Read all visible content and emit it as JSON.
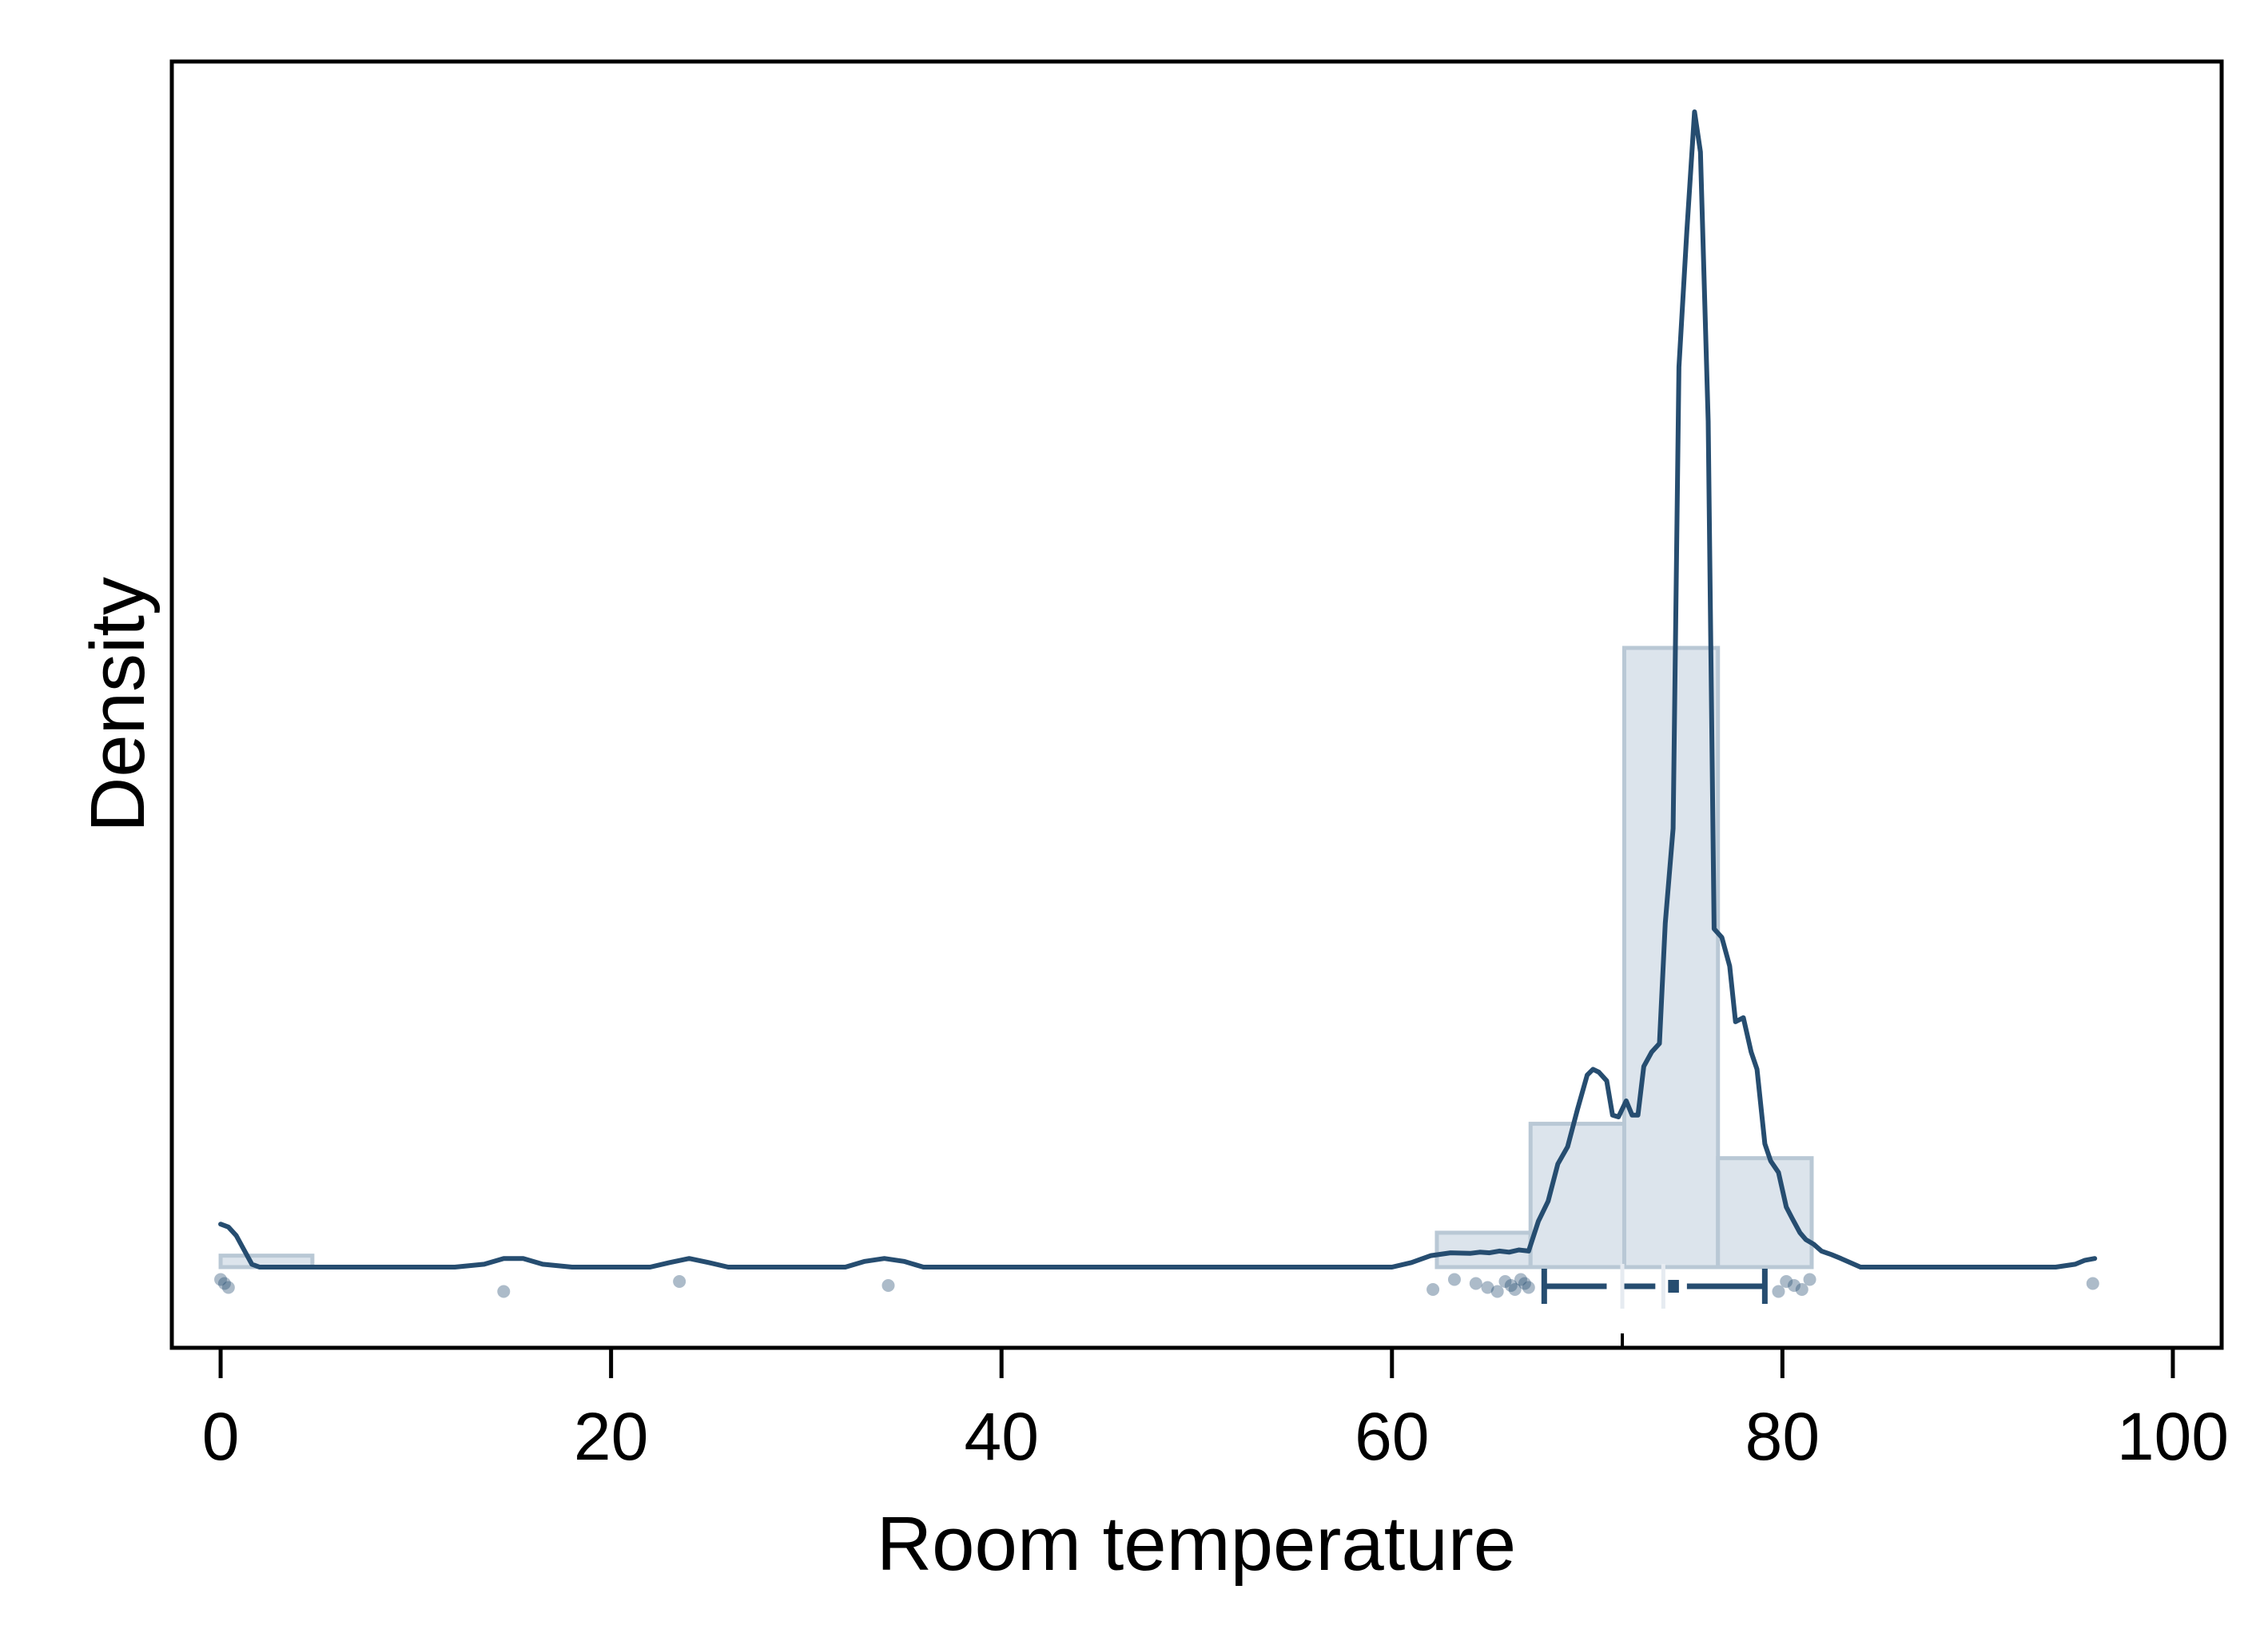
{
  "chart_data": {
    "type": "histogram-density",
    "xlabel": "Room temperature",
    "ylabel": "Density",
    "xlim": [
      -2.5,
      102.5
    ],
    "x_ticks": [
      0,
      20,
      40,
      60,
      80,
      100
    ],
    "y_ticks": [],
    "grid": false,
    "legend": "none",
    "colors": {
      "line": "#264d70",
      "bar_fill": "#dce4ec",
      "bar_stroke": "#b9c8d5",
      "points": "#264d70",
      "box": "#264d70"
    },
    "histogram": {
      "bin_edges": [
        0,
        4.7,
        62.3,
        67.1,
        71.9,
        76.7,
        81.5
      ],
      "density": [
        0.002,
        0.0,
        0.006,
        0.025,
        0.108,
        0.019
      ]
    },
    "density_curve": {
      "x": [
        0,
        0.4,
        0.8,
        1.2,
        1.6,
        2,
        4,
        8,
        12,
        13.5,
        14.5,
        15.5,
        16.5,
        18,
        22,
        23,
        24,
        25,
        26,
        28,
        32,
        33,
        34,
        35,
        36,
        40,
        50,
        60,
        61,
        62,
        63,
        64,
        64.5,
        65,
        65.5,
        66,
        66.5,
        67,
        67.5,
        68,
        68.5,
        69,
        69.5,
        70,
        70.3,
        70.6,
        71,
        71.3,
        71.6,
        72,
        72.3,
        72.6,
        72.9,
        73.3,
        73.7,
        74,
        74.4,
        74.7,
        75.1,
        75.5,
        75.8,
        76.2,
        76.5,
        76.9,
        77.3,
        77.6,
        78,
        78.4,
        78.7,
        79.1,
        79.4,
        79.8,
        80.2,
        80.5,
        80.9,
        81.2,
        81.6,
        82,
        82.5,
        83,
        84,
        90,
        94,
        95,
        95.5,
        96
      ],
      "density": [
        0.0075,
        0.007,
        0.0055,
        0.003,
        0.0005,
        0,
        0,
        0,
        0,
        0.0005,
        0.0015,
        0.0015,
        0.0005,
        0,
        0,
        0.0008,
        0.0015,
        0.0008,
        0,
        0,
        0,
        0.001,
        0.0015,
        0.001,
        0,
        0,
        0,
        0,
        0.0008,
        0.002,
        0.0025,
        0.0024,
        0.0026,
        0.0025,
        0.0028,
        0.0026,
        0.003,
        0.0028,
        0.008,
        0.0115,
        0.018,
        0.021,
        0.0275,
        0.0335,
        0.0345,
        0.034,
        0.0325,
        0.0265,
        0.0262,
        0.029,
        0.0265,
        0.0265,
        0.035,
        0.0375,
        0.039,
        0.06,
        0.0765,
        0.157,
        0.1805,
        0.2015,
        0.1945,
        0.1475,
        0.059,
        0.0575,
        0.0525,
        0.0428,
        0.0435,
        0.0375,
        0.0345,
        0.0215,
        0.0185,
        0.0165,
        0.0105,
        0.0085,
        0.006,
        0.0048,
        0.004,
        0.0028,
        0.0022,
        0.0015,
        0,
        0,
        0,
        0.0005,
        0.0012,
        0.0015
      ],
      "y_max": 0.2015
    },
    "boxplot": {
      "lower_whisker": 67.8,
      "q1": 71.9,
      "median": 73.9,
      "q3": 74.7,
      "upper_whisker": 79.1,
      "mean": 71.8
    },
    "rug_points": [
      0,
      0.2,
      0.4,
      14.5,
      23.5,
      34.2,
      62.1,
      63.2,
      64.3,
      64.9,
      65.4,
      65.8,
      66.1,
      66.3,
      66.6,
      66.8,
      67.0,
      79.8,
      80.2,
      80.6,
      81.0,
      81.4,
      95.9
    ]
  }
}
